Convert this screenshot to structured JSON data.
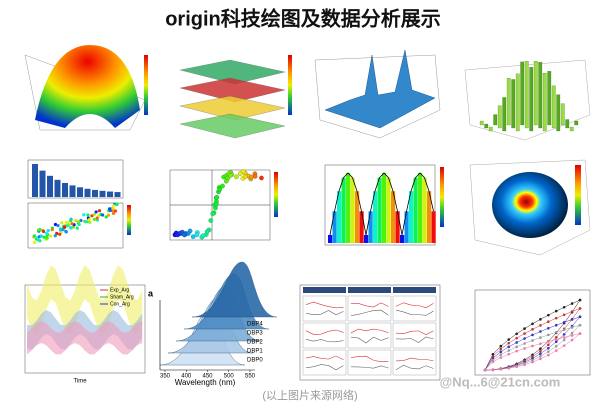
{
  "header": {
    "title": "origin科技绘图及数据分析展示"
  },
  "panels": {
    "ribbon": {
      "legend": [
        "Exp_Arg",
        "Sham_Arg",
        "Con_Arg"
      ],
      "x_label": "Time"
    },
    "spectra": {
      "label": "a",
      "series": [
        "DBP0",
        "DBP1",
        "DBP2",
        "DBP3",
        "DBP4"
      ],
      "x_label": "Wavelength (nm)",
      "x_ticks": [
        350,
        400,
        450,
        500,
        550
      ]
    }
  },
  "footer": {
    "source_note": "(以上图片来源网络)",
    "watermark": "@Nq...6@21cn.com"
  }
}
